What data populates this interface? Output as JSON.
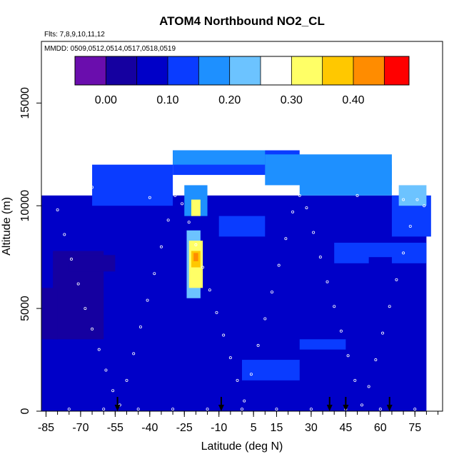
{
  "chart_data": {
    "type": "heatmap",
    "title": "ATOM4 Northbound NO2_CL",
    "flights_note": "Flts: 7,8,9,10,11,12",
    "dates_note": "MMDD: 0509,0512,0514,0517,0518,0519",
    "xlabel": "Latitude (deg N)",
    "ylabel": "Altitude (m)",
    "xlim": [
      -87,
      87
    ],
    "ylim": [
      0,
      18000
    ],
    "x_ticks": [
      -85,
      -70,
      -55,
      -40,
      -25,
      -10,
      5,
      15,
      30,
      45,
      60,
      75
    ],
    "x_minor_ticks": [
      -85,
      -80,
      -75,
      -70,
      -65,
      -60,
      -55,
      -50,
      -45,
      -40,
      -35,
      -30,
      -25,
      -20,
      -15,
      -10,
      -5,
      0,
      5,
      10,
      15,
      20,
      25,
      30,
      35,
      40,
      45,
      50,
      55,
      60,
      65,
      70,
      75,
      80,
      85
    ],
    "y_ticks": [
      0,
      5000,
      10000,
      15000
    ],
    "colorbar": {
      "min": -0.05,
      "max": 0.49,
      "breaks": [
        -0.05,
        0.0,
        0.05,
        0.1,
        0.15,
        0.2,
        0.25,
        0.3,
        0.35,
        0.4,
        0.45,
        0.49
      ],
      "ticks": [
        0.0,
        0.1,
        0.2,
        0.3,
        0.4
      ],
      "tick_labels": [
        "0.00",
        "0.10",
        "0.20",
        "0.30",
        "0.40"
      ],
      "colors": [
        "#6a0dad",
        "#1500a0",
        "#0000c8",
        "#0a3cff",
        "#1e90ff",
        "#6cc3ff",
        "#ffffff",
        "#ffff66",
        "#ffc800",
        "#ff8c00",
        "#ff0000",
        "#a00000"
      ]
    },
    "background_value": 0.06,
    "regions": [
      {
        "lat": [
          -87,
          80
        ],
        "alt": [
          0,
          10500
        ],
        "value": 0.06
      },
      {
        "lat": [
          -85,
          -55
        ],
        "alt": [
          0,
          800
        ],
        "value": 0.06
      },
      {
        "lat": [
          -82,
          -60
        ],
        "alt": [
          3500,
          7800
        ],
        "value": 0.02
      },
      {
        "lat": [
          -75,
          -55
        ],
        "alt": [
          6800,
          7600
        ],
        "value": 0.01
      },
      {
        "lat": [
          -87,
          -80
        ],
        "alt": [
          3500,
          6000
        ],
        "value": 0.0
      },
      {
        "lat": [
          -65,
          -30
        ],
        "alt": [
          10000,
          12000
        ],
        "value": 0.12
      },
      {
        "lat": [
          -30,
          25
        ],
        "alt": [
          11500,
          12700
        ],
        "value": 0.14
      },
      {
        "lat": [
          25,
          65
        ],
        "alt": [
          10500,
          12000
        ],
        "value": 0.16
      },
      {
        "lat": [
          -30,
          10
        ],
        "alt": [
          12000,
          12700
        ],
        "value": 0.17
      },
      {
        "lat": [
          10,
          65
        ],
        "alt": [
          11000,
          12500
        ],
        "value": 0.19
      },
      {
        "lat": [
          -25,
          -15
        ],
        "alt": [
          9500,
          11000
        ],
        "value": 0.17
      },
      {
        "lat": [
          -24,
          -18
        ],
        "alt": [
          5500,
          8800
        ],
        "value": 0.21
      },
      {
        "lat": [
          -23,
          -17
        ],
        "alt": [
          6000,
          8300
        ],
        "value": 0.3
      },
      {
        "lat": [
          -22,
          -18
        ],
        "alt": [
          7000,
          7800
        ],
        "value": 0.36
      },
      {
        "lat": [
          -21,
          -19
        ],
        "alt": [
          7300,
          7700
        ],
        "value": 0.44
      },
      {
        "lat": [
          -22,
          -18
        ],
        "alt": [
          9500,
          10300
        ],
        "value": 0.3
      },
      {
        "lat": [
          -10,
          10
        ],
        "alt": [
          8500,
          9500
        ],
        "value": 0.12
      },
      {
        "lat": [
          0,
          25
        ],
        "alt": [
          1500,
          2500
        ],
        "value": 0.12
      },
      {
        "lat": [
          25,
          45
        ],
        "alt": [
          3000,
          3500
        ],
        "value": 0.1
      },
      {
        "lat": [
          40,
          80
        ],
        "alt": [
          7200,
          8200
        ],
        "value": 0.12
      },
      {
        "lat": [
          55,
          65
        ],
        "alt": [
          4000,
          7500
        ],
        "value": 0.09
      },
      {
        "lat": [
          65,
          82
        ],
        "alt": [
          8500,
          10500
        ],
        "value": 0.14
      },
      {
        "lat": [
          68,
          80
        ],
        "alt": [
          10000,
          11000
        ],
        "value": 0.2
      },
      {
        "lat": [
          15,
          55
        ],
        "alt": [
          0,
          500
        ],
        "value": 0.08
      }
    ],
    "flight_path_points": {
      "lat": [
        -80,
        -77,
        -74,
        -71,
        -68,
        -65,
        -62,
        -59,
        -56,
        -53,
        -50,
        -47,
        -44,
        -41,
        -38,
        -35,
        -32,
        -29,
        -26,
        -23,
        -20,
        -17,
        -14,
        -11,
        -8,
        -5,
        -2,
        1,
        4,
        7,
        10,
        13,
        16,
        19,
        22,
        25,
        28,
        31,
        34,
        37,
        40,
        43,
        46,
        49,
        52,
        55,
        58,
        61,
        64,
        67,
        70,
        73,
        76,
        79,
        -75,
        -60,
        -45,
        -30,
        -15,
        0,
        15,
        30,
        45,
        60,
        75,
        -65,
        -40,
        -10,
        20,
        50,
        70
      ],
      "alt": [
        9800,
        8600,
        7400,
        6200,
        5000,
        4000,
        3000,
        2000,
        1000,
        300,
        1500,
        2800,
        4100,
        5400,
        6700,
        8000,
        9300,
        10500,
        10100,
        9200,
        8100,
        7000,
        5900,
        4800,
        3700,
        2600,
        1500,
        500,
        1800,
        3200,
        4500,
        5800,
        7100,
        8400,
        9700,
        10500,
        9900,
        8700,
        7500,
        6300,
        5100,
        3900,
        2700,
        1500,
        300,
        1200,
        2500,
        3800,
        5100,
        6400,
        7700,
        9000,
        10300,
        10000,
        100,
        100,
        100,
        100,
        100,
        100,
        100,
        100,
        100,
        100,
        100,
        10900,
        10400,
        10800,
        10600,
        10500,
        10300
      ]
    },
    "arrow_markers_lat": [
      -54,
      -9,
      38,
      45,
      64
    ]
  }
}
